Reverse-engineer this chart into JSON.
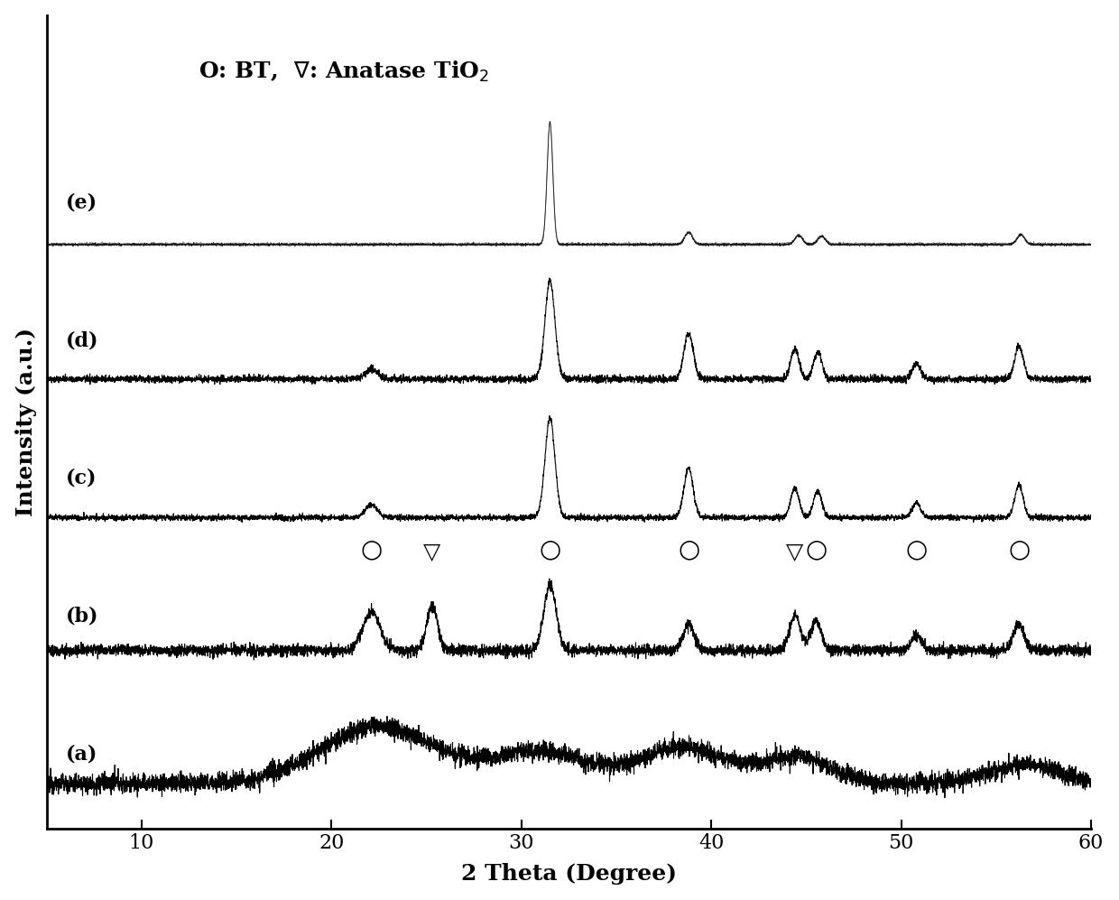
{
  "xlabel": "2 Theta (Degree)",
  "ylabel": "Intensity (a.u.)",
  "xmin": 5,
  "xmax": 60,
  "labels": [
    "(a)",
    "(b)",
    "(c)",
    "(d)",
    "(e)"
  ],
  "offsets": [
    0,
    2.2,
    4.4,
    6.6,
    8.8
  ],
  "background_color": "#ffffff",
  "line_color": "#000000",
  "tick_fontsize": 16,
  "label_fontsize": 18,
  "legend_fontsize": 16,
  "bt_peaks_b": [
    22.1,
    31.5,
    38.8,
    45.5,
    50.8,
    56.2
  ],
  "tio2_peaks_b": [
    25.3,
    44.4
  ]
}
